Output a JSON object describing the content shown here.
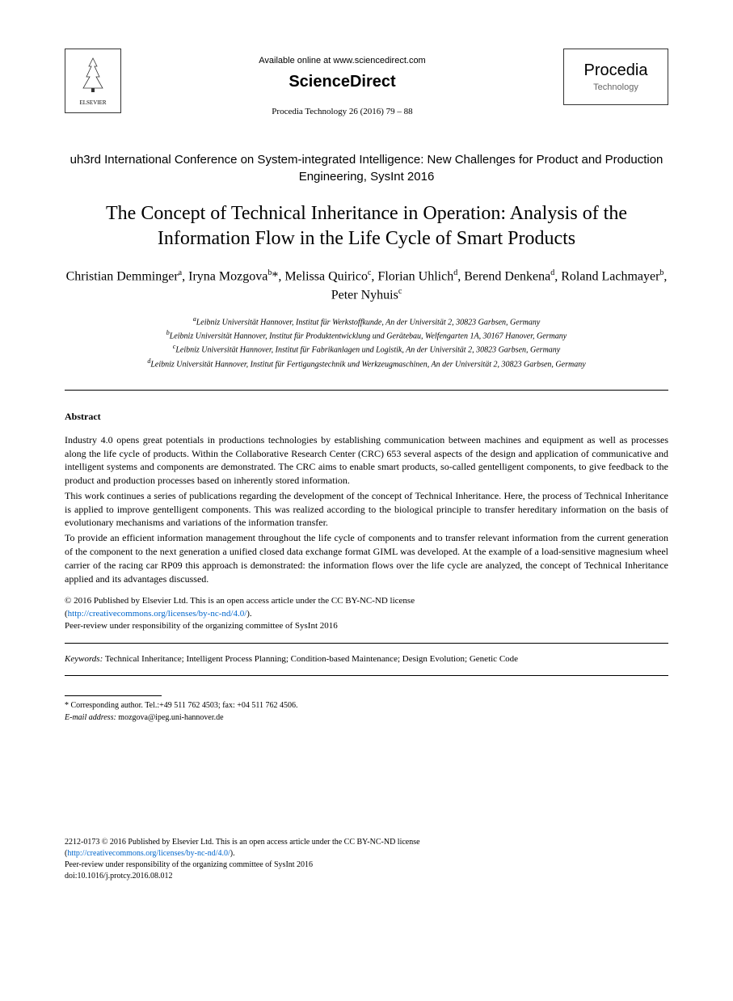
{
  "header": {
    "available_online": "Available online at www.sciencedirect.com",
    "sciencedirect": "ScienceDirect",
    "journal_ref": "Procedia Technology 26 (2016) 79 – 88",
    "elsevier_label": "ELSEVIER",
    "procedia_title": "Procedia",
    "procedia_sub": "Technology"
  },
  "conference": "uh3rd International Conference on System-integrated Intelligence: New Challenges for Product and Production Engineering, SysInt 2016",
  "title": "The Concept of Technical Inheritance in Operation: Analysis of the Information Flow in the Life Cycle of Smart Products",
  "authors_html": "Christian Demminger<sup>a</sup>, Iryna Mozgova<sup>b</sup>*, Melissa Quirico<sup>c</sup>, Florian Uhlich<sup>d</sup>, Berend Denkena<sup>d</sup>, Roland Lachmayer<sup>b</sup>, Peter Nyhuis<sup>c</sup>",
  "affiliations": {
    "a": "Leibniz Universität Hannover, Institut für Werkstoffkunde, An der Universität 2, 30823 Garbsen, Germany",
    "b": "Leibniz Universität Hannover, Institut für Produktentwicklung und Gerätebau, Welfengarten 1A, 30167 Hanover, Germany",
    "c": "Leibniz Universität Hannover, Institut für Fabrikanlagen und Logistik, An der Universität 2, 30823 Garbsen, Germany",
    "d": "Leibniz Universität Hannover, Institut für Fertigungstechnik und Werkzeugmaschinen, An der Universität 2, 30823 Garbsen, Germany"
  },
  "abstract_heading": "Abstract",
  "abstract_paragraphs": [
    "Industry 4.0 opens great potentials in productions technologies by establishing communication between machines and equipment as well as processes along the life cycle of products. Within the Collaborative Research Center (CRC) 653 several aspects of the design and application of communicative and intelligent systems and components are demonstrated. The CRC aims to enable smart products, so-called gentelligent components, to give feedback to the product and production processes based on inherently stored information.",
    "This work continues a series of publications regarding the development of the concept of Technical Inheritance. Here, the process of Technical Inheritance is applied to improve gentelligent components. This was realized according to the biological principle to transfer hereditary information on the basis of evolutionary mechanisms and variations of the information transfer.",
    "To provide an efficient information management throughout the life cycle of components and to transfer relevant information from the current generation of the component to the next generation a unified closed data exchange format GIML was developed. At the example of a load-sensitive magnesium wheel carrier of the racing car RP09 this approach is demonstrated: the information flows over the life cycle are analyzed, the concept of Technical Inheritance applied and its advantages discussed."
  ],
  "license": {
    "line1": "© 2016 Published by Elsevier Ltd. This is an open access article under the CC BY-NC-ND license",
    "link_text": "http://creativecommons.org/licenses/by-nc-nd/4.0/",
    "line2": "Peer-review under responsibility of the organizing committee of SysInt 2016"
  },
  "keywords_label": "Keywords:",
  "keywords": "Technical Inheritance; Intelligent Process Planning; Condition-based Maintenance; Design Evolution; Genetic Code",
  "footnote": {
    "corresponding": "* Corresponding author. Tel.:+49 511 762 4503; fax: +04 511 762 4506.",
    "email_label": "E-mail address:",
    "email": "mozgova@ipeg.uni-hannover.de"
  },
  "footer": {
    "issn_line": "2212-0173 © 2016 Published by Elsevier Ltd. This is an open access article under the CC BY-NC-ND license",
    "link_text": "http://creativecommons.org/licenses/by-nc-nd/4.0/",
    "peer_review": "Peer-review under responsibility of the organizing committee of SysInt 2016",
    "doi": "doi:10.1016/j.protcy.2016.08.012"
  }
}
